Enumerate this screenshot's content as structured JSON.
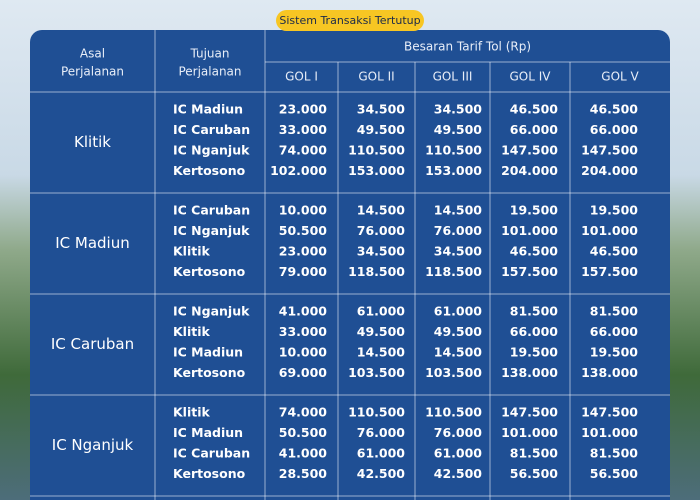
{
  "badge": "Sistem Transaksi Tertutup",
  "table": {
    "headers": {
      "origin": [
        "Asal",
        "Perjalanan"
      ],
      "destination": [
        "Tujuan",
        "Perjalanan"
      ],
      "tariff": "Besaran Tarif Tol (Rp)",
      "classes": [
        "GOL I",
        "GOL II",
        "GOL III",
        "GOL IV",
        "GOL V"
      ]
    },
    "groups": [
      {
        "origin": "Klitik",
        "rows": [
          {
            "destination": "IC Madiun",
            "tariffs": [
              "23.000",
              "34.500",
              "34.500",
              "46.500",
              "46.500"
            ]
          },
          {
            "destination": "IC Caruban",
            "tariffs": [
              "33.000",
              "49.500",
              "49.500",
              "66.000",
              "66.000"
            ]
          },
          {
            "destination": "IC Nganjuk",
            "tariffs": [
              "74.000",
              "110.500",
              "110.500",
              "147.500",
              "147.500"
            ]
          },
          {
            "destination": "Kertosono",
            "tariffs": [
              "102.000",
              "153.000",
              "153.000",
              "204.000",
              "204.000"
            ]
          }
        ]
      },
      {
        "origin": "IC Madiun",
        "rows": [
          {
            "destination": "IC Caruban",
            "tariffs": [
              "10.000",
              "14.500",
              "14.500",
              "19.500",
              "19.500"
            ]
          },
          {
            "destination": "IC Nganjuk",
            "tariffs": [
              "50.500",
              "76.000",
              "76.000",
              "101.000",
              "101.000"
            ]
          },
          {
            "destination": "Klitik",
            "tariffs": [
              "23.000",
              "34.500",
              "34.500",
              "46.500",
              "46.500"
            ]
          },
          {
            "destination": "Kertosono",
            "tariffs": [
              "79.000",
              "118.500",
              "118.500",
              "157.500",
              "157.500"
            ]
          }
        ]
      },
      {
        "origin": "IC Caruban",
        "rows": [
          {
            "destination": "IC Nganjuk",
            "tariffs": [
              "41.000",
              "61.000",
              "61.000",
              "81.500",
              "81.500"
            ]
          },
          {
            "destination": "Klitik",
            "tariffs": [
              "33.000",
              "49.500",
              "49.500",
              "66.000",
              "66.000"
            ]
          },
          {
            "destination": "IC Madiun",
            "tariffs": [
              "10.000",
              "14.500",
              "14.500",
              "19.500",
              "19.500"
            ]
          },
          {
            "destination": "Kertosono",
            "tariffs": [
              "69.000",
              "103.500",
              "103.500",
              "138.000",
              "138.000"
            ]
          }
        ]
      },
      {
        "origin": "IC Nganjuk",
        "rows": [
          {
            "destination": "Klitik",
            "tariffs": [
              "74.000",
              "110.500",
              "110.500",
              "147.500",
              "147.500"
            ]
          },
          {
            "destination": "IC Madiun",
            "tariffs": [
              "50.500",
              "76.000",
              "76.000",
              "101.000",
              "101.000"
            ]
          },
          {
            "destination": "IC Caruban",
            "tariffs": [
              "41.000",
              "61.000",
              "61.000",
              "81.500",
              "81.500"
            ]
          },
          {
            "destination": "Kertosono",
            "tariffs": [
              "28.500",
              "42.500",
              "42.500",
              "56.500",
              "56.500"
            ]
          }
        ]
      }
    ]
  }
}
